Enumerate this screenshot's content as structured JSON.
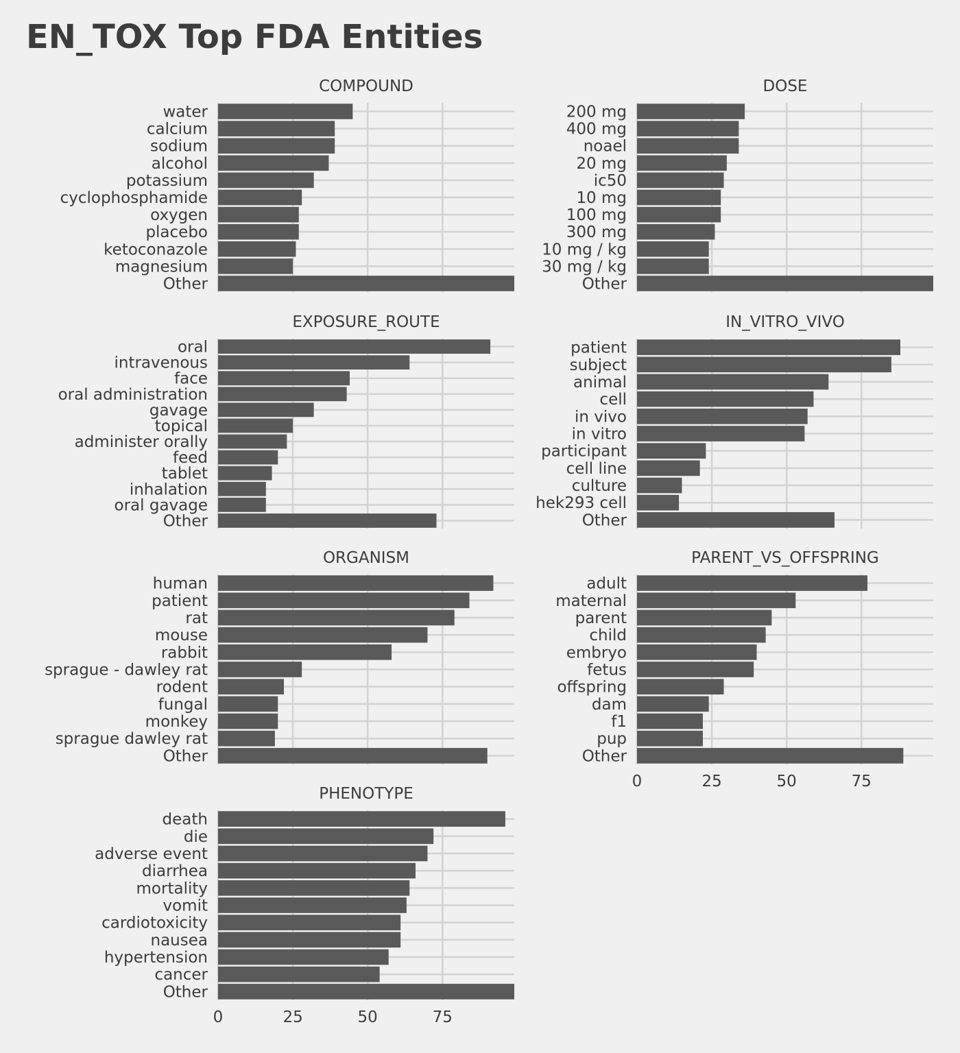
{
  "chart_data": {
    "type": "bar",
    "orientation": "horizontal",
    "title": "EN_TOX Top FDA Entities",
    "xlabel": "",
    "ylabel": "",
    "xlim": [
      0,
      99
    ],
    "x_ticks": [
      0,
      25,
      50,
      75
    ],
    "grid": true,
    "legend": "none",
    "colors": {
      "background": "#f0f0f0",
      "bar": "#595959",
      "grid": "#d2d2d2",
      "text": "#3c3c3c"
    },
    "facets": [
      {
        "name": "COMPOUND",
        "categories": [
          "water",
          "calcium",
          "sodium",
          "alcohol",
          "potassium",
          "cyclophosphamide",
          "oxygen",
          "placebo",
          "ketoconazole",
          "magnesium",
          "Other"
        ],
        "values": [
          45,
          39,
          39,
          37,
          32,
          28,
          27,
          27,
          26,
          25,
          99
        ]
      },
      {
        "name": "DOSE",
        "categories": [
          "200 mg",
          "400 mg",
          "noael",
          "20 mg",
          "ic50",
          "10 mg",
          "100 mg",
          "300 mg",
          "10 mg / kg",
          "30 mg / kg",
          "Other"
        ],
        "values": [
          36,
          34,
          34,
          30,
          29,
          28,
          28,
          26,
          24,
          24,
          99
        ]
      },
      {
        "name": "EXPOSURE_ROUTE",
        "categories": [
          "oral",
          "intravenous",
          "face",
          "oral administration",
          "gavage",
          "topical",
          "administer orally",
          "feed",
          "tablet",
          "inhalation",
          "oral gavage",
          "Other"
        ],
        "values": [
          91,
          64,
          44,
          43,
          32,
          25,
          23,
          20,
          18,
          16,
          16,
          73
        ]
      },
      {
        "name": "IN_VITRO_VIVO",
        "categories": [
          "patient",
          "subject",
          "animal",
          "cell",
          "in vivo",
          "in vitro",
          "participant",
          "cell line",
          "culture",
          "hek293 cell",
          "Other"
        ],
        "values": [
          88,
          85,
          64,
          59,
          57,
          56,
          23,
          21,
          15,
          14,
          66
        ]
      },
      {
        "name": "ORGANISM",
        "categories": [
          "human",
          "patient",
          "rat",
          "mouse",
          "rabbit",
          "sprague - dawley rat",
          "rodent",
          "fungal",
          "monkey",
          "sprague dawley rat",
          "Other"
        ],
        "values": [
          92,
          84,
          79,
          70,
          58,
          28,
          22,
          20,
          20,
          19,
          90
        ]
      },
      {
        "name": "PARENT_VS_OFFSPRING",
        "categories": [
          "adult",
          "maternal",
          "parent",
          "child",
          "embryo",
          "fetus",
          "offspring",
          "dam",
          "f1",
          "pup",
          "Other"
        ],
        "values": [
          77,
          53,
          45,
          43,
          40,
          39,
          29,
          24,
          22,
          22,
          89
        ]
      },
      {
        "name": "PHENOTYPE",
        "categories": [
          "death",
          "die",
          "adverse event",
          "diarrhea",
          "mortality",
          "vomit",
          "cardiotoxicity",
          "nausea",
          "hypertension",
          "cancer",
          "Other"
        ],
        "values": [
          96,
          72,
          70,
          66,
          64,
          63,
          61,
          61,
          57,
          54,
          99
        ]
      }
    ]
  }
}
